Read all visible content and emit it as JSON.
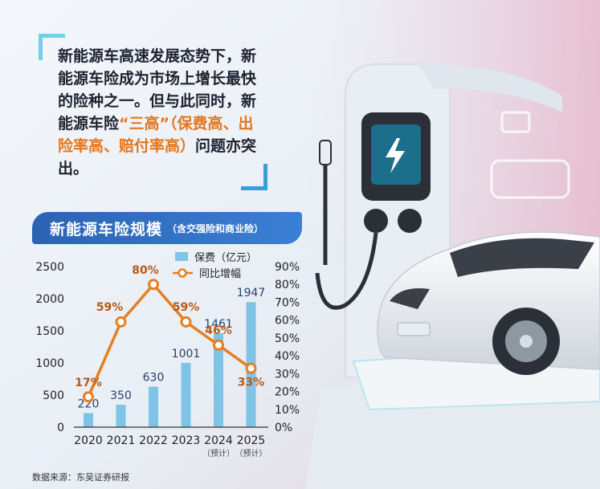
{
  "intro": {
    "part1": "新能源车高速发展态势下，新能源车险成为市场上增长最快的险种之一。但与此同时，新能源车险",
    "highlight1": "“三高”",
    "highlight2": "（保费高、出险率高、赔付率高）",
    "part2": "问题亦突出。"
  },
  "banner": {
    "title": "新能源车险规模",
    "subtitle": "（含交强险和商业险）"
  },
  "source": "数据来源：东吴证券研报",
  "colors": {
    "bar": "#7fc3e6",
    "line": "#e67e22",
    "banner": "#2b63b3",
    "highlight": "#e2761e"
  },
  "chart_data": {
    "type": "bar+line",
    "categories": [
      "2020",
      "2021",
      "2022",
      "2023",
      "2024",
      "2025"
    ],
    "category_notes": [
      "",
      "",
      "",
      "",
      "（预计）",
      "（预计）"
    ],
    "series": [
      {
        "name": "保费（亿元）",
        "type": "bar",
        "axis": "left",
        "values": [
          220,
          350,
          630,
          1001,
          1461,
          1947
        ],
        "labels": [
          "220",
          "350",
          "630",
          "1001",
          "1461",
          "1947"
        ]
      },
      {
        "name": "同比增幅",
        "type": "line",
        "axis": "right",
        "values": [
          17,
          59,
          80,
          59,
          46,
          33
        ],
        "labels": [
          "17%",
          "59%",
          "80%",
          "59%",
          "46%",
          "33%"
        ]
      }
    ],
    "left_axis": {
      "ylim": [
        0,
        2500
      ],
      "ticks": [
        "0",
        "500",
        "1000",
        "1500",
        "2000",
        "2500"
      ]
    },
    "right_axis": {
      "ylim": [
        0,
        90
      ],
      "ticks": [
        "0%",
        "10%",
        "20%",
        "30%",
        "40%",
        "50%",
        "60%",
        "70%",
        "80%",
        "90%"
      ]
    },
    "legend_position": "top",
    "grid": false
  }
}
